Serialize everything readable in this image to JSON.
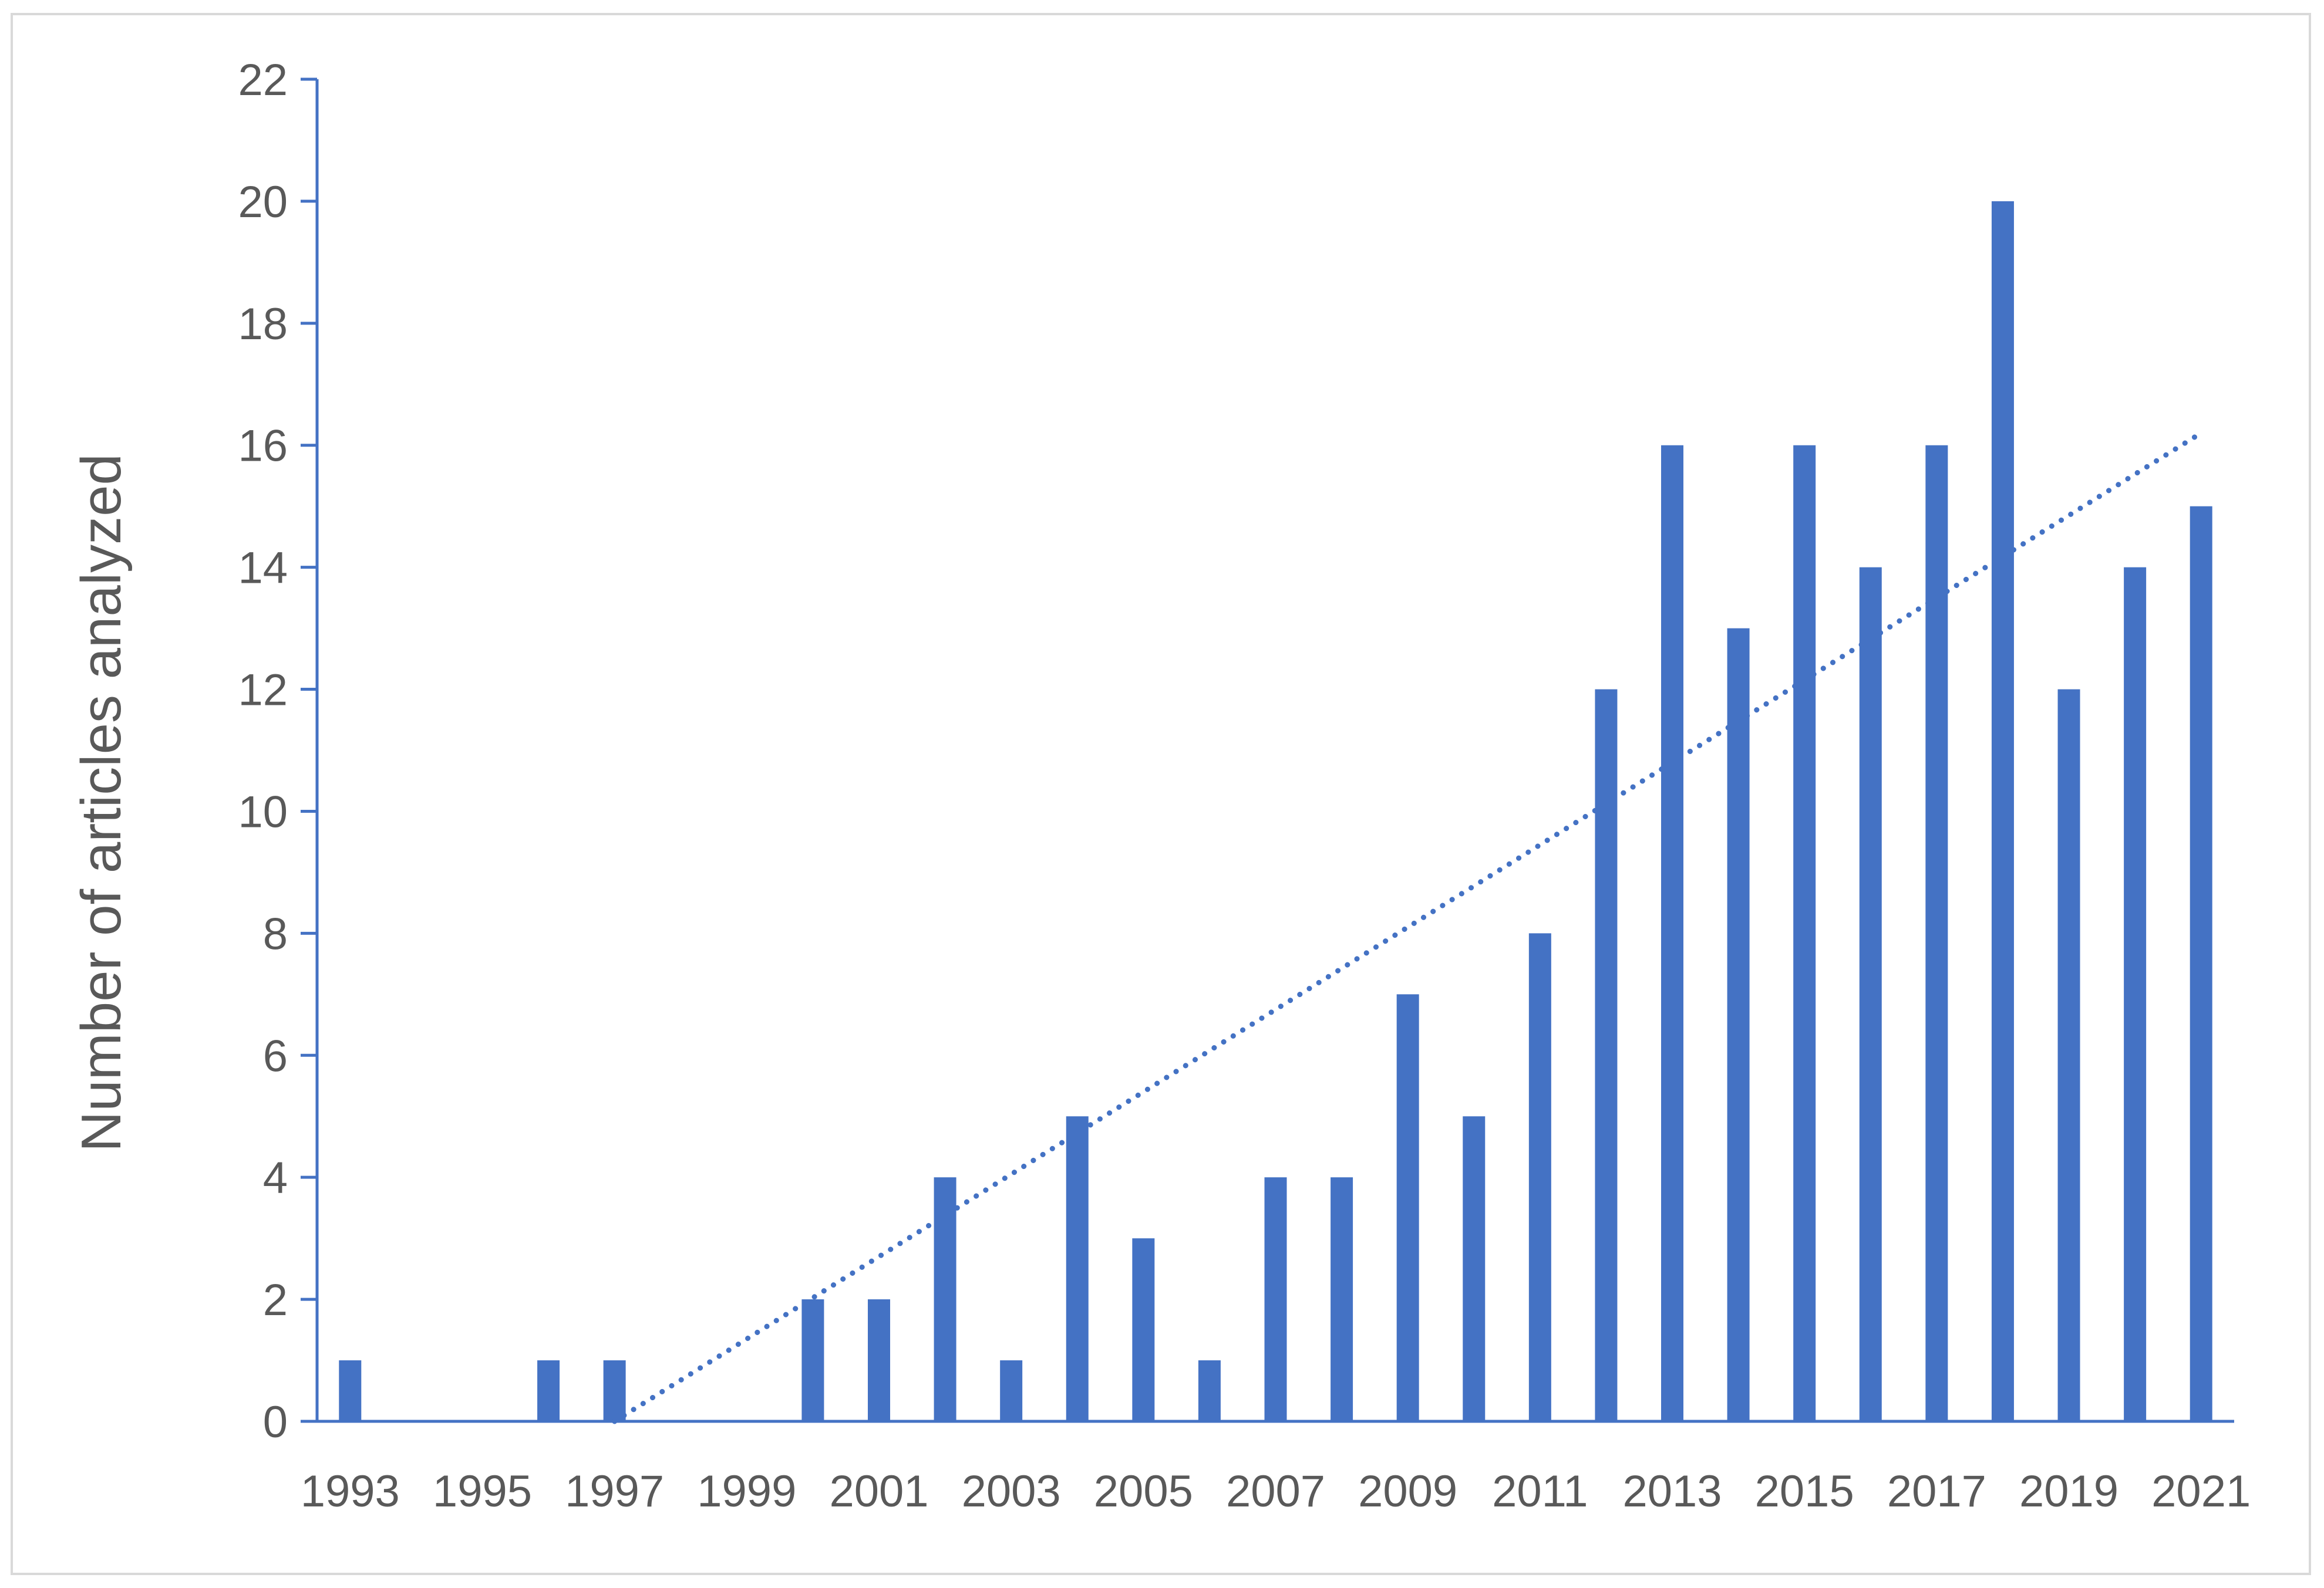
{
  "chart_data": {
    "type": "bar",
    "title": "",
    "xlabel": "",
    "ylabel": "Number of articles analyzed",
    "categories": [
      "1993",
      "1994",
      "1995",
      "1996",
      "1997",
      "1998",
      "1999",
      "2000",
      "2001",
      "2002",
      "2003",
      "2004",
      "2005",
      "2006",
      "2007",
      "2008",
      "2009",
      "2010",
      "2011",
      "2012",
      "2013",
      "2014",
      "2015",
      "2016",
      "2017",
      "2018",
      "2019",
      "2020",
      "2021"
    ],
    "x_tick_labels": [
      "1993",
      "1995",
      "1997",
      "1999",
      "2001",
      "2003",
      "2005",
      "2007",
      "2009",
      "2011",
      "2013",
      "2015",
      "2017",
      "2019",
      "2021"
    ],
    "series": [
      {
        "values": [
          1,
          0,
          0,
          1,
          1,
          0,
          0,
          2,
          2,
          4,
          1,
          5,
          3,
          1,
          4,
          4,
          7,
          5,
          8,
          12,
          16,
          13,
          16,
          14,
          16,
          20,
          12,
          14,
          15
        ]
      }
    ],
    "trendline": {
      "type": "linear",
      "style": "dotted",
      "start": {
        "x": "1997",
        "y": 0
      },
      "end": {
        "x": "2021",
        "y": 16.2
      }
    },
    "ylim": [
      0,
      22
    ],
    "y_ticks": [
      0,
      2,
      4,
      6,
      8,
      10,
      12,
      14,
      16,
      18,
      20,
      22
    ],
    "grid": false,
    "legend": "none",
    "colors": {
      "bar": "#4472C4",
      "trendline": "#4472C4",
      "axis": "#4472C4",
      "text": "#595959"
    }
  }
}
